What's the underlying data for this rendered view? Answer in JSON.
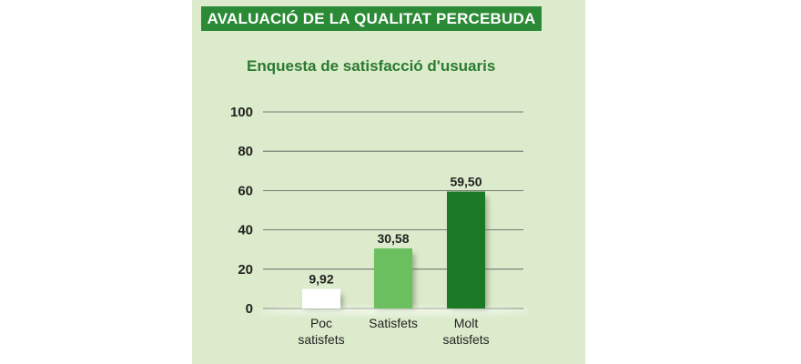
{
  "header": {
    "title": "AVALUACIÓ DE LA QUALITAT PERCEBUDA"
  },
  "chart_data": {
    "type": "bar",
    "title": "Enquesta de satisfacció d'usuaris",
    "categories": [
      [
        "Poc",
        "satisfets"
      ],
      [
        "Satisfets"
      ],
      [
        "Molt",
        "satisfets"
      ]
    ],
    "values": [
      9.92,
      30.58,
      59.5
    ],
    "value_labels": [
      "9,92",
      "30,58",
      "59,50"
    ],
    "colors": [
      "#ffffff",
      "#6cbf5e",
      "#1b7a25"
    ],
    "yticks": [
      "0",
      "20",
      "40",
      "60",
      "80",
      "100"
    ],
    "ytick_values": [
      0,
      20,
      40,
      60,
      80,
      100
    ],
    "ylim": [
      0,
      100
    ],
    "grid": true,
    "xlabel": "",
    "ylabel": ""
  }
}
